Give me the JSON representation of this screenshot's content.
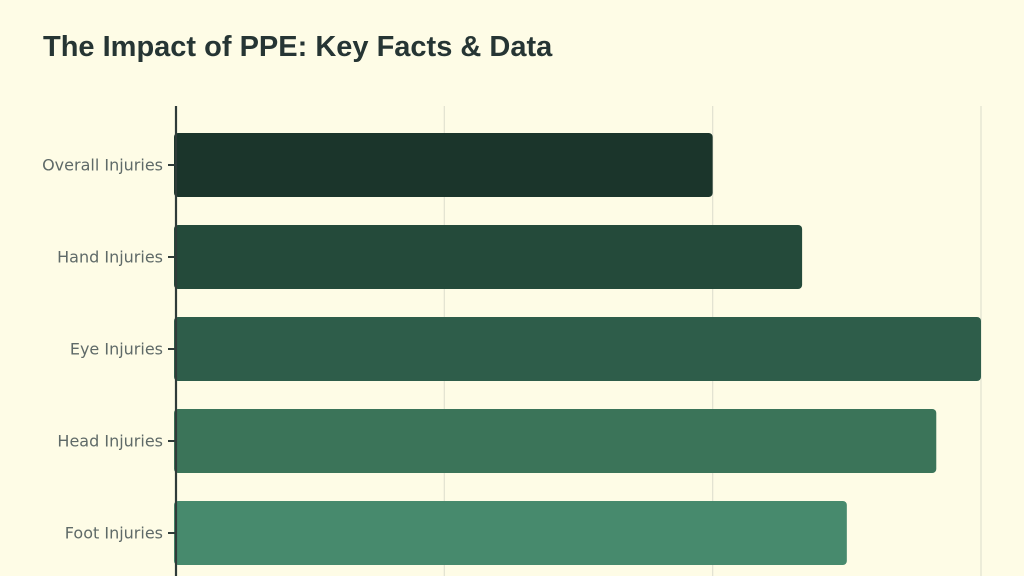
{
  "title": "The Impact of PPE: Key Facts & Data",
  "colors": {
    "background": "#fefce6",
    "grid": "#e3e3d2",
    "axis": "#2f3b39",
    "title": "#263534",
    "bars": [
      "#1b352b",
      "#244a3a",
      "#2e5d4a",
      "#3b7459",
      "#478a6d"
    ]
  },
  "chart_data": {
    "type": "bar",
    "orientation": "horizontal",
    "title": "The Impact of PPE: Key Facts & Data",
    "categories": [
      "Overall Injuries",
      "Hand Injuries",
      "Eye Injuries",
      "Head Injuries",
      "Foot Injuries"
    ],
    "values": [
      60,
      70,
      90,
      85,
      75
    ],
    "xlim": [
      0,
      90
    ],
    "x_gridlines": [
      0,
      30,
      60,
      90
    ],
    "x_tick_labels_visible": false,
    "xlabel": "",
    "ylabel": "",
    "grid": true,
    "legend": "none"
  }
}
